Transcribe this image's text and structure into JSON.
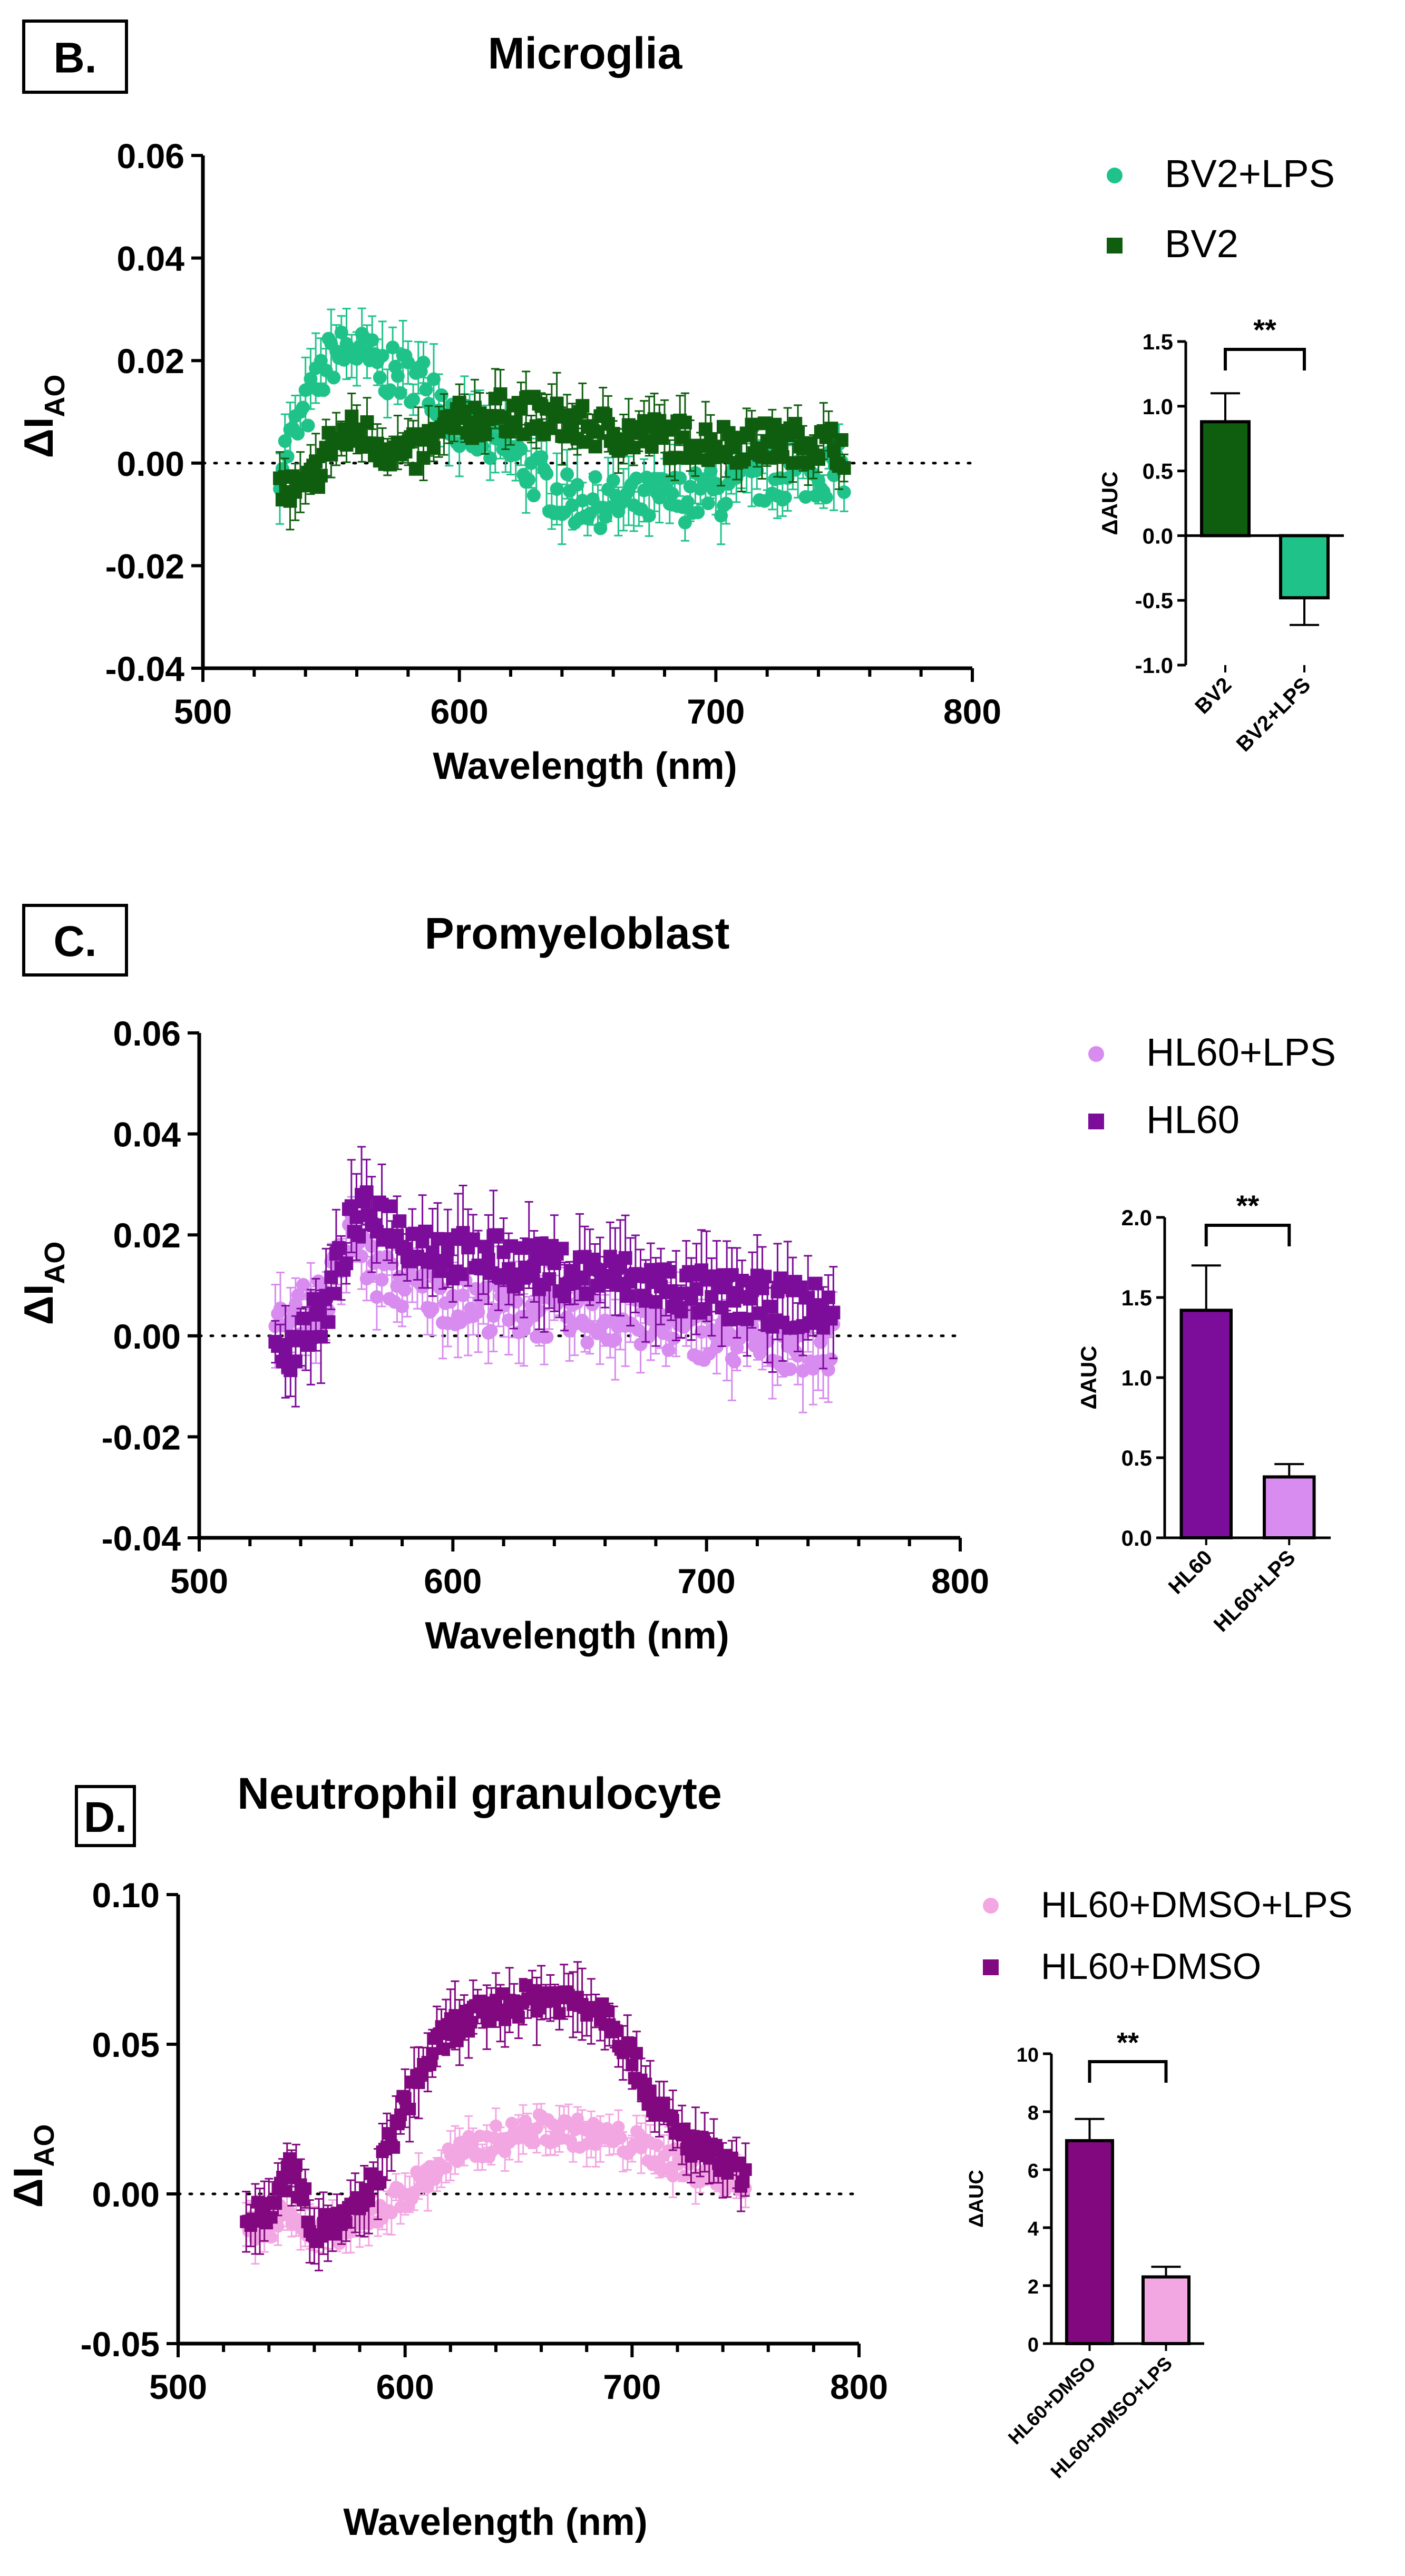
{
  "colors": {
    "bv2": "#0f5e0f",
    "bv2_lps": "#1fc38a",
    "hl60": "#7c0c9a",
    "hl60_lps": "#d88cef",
    "hl60_dmso": "#82087f",
    "hl60_dmso_lps": "#f3a7e2",
    "axis": "#000000"
  },
  "chart_data": [
    {
      "panel": "B.",
      "title": "Microglia",
      "type": "scatter",
      "xlabel": "Wavelength (nm)",
      "ylabel": {
        "delta": "Δ",
        "main": "I",
        "sub": "AO"
      },
      "xlim": [
        500,
        800
      ],
      "ylim": [
        -0.04,
        0.06
      ],
      "xticks": [
        500,
        600,
        700,
        800
      ],
      "xtick_labels": [
        "500",
        "600",
        "700",
        "800"
      ],
      "yticks": [
        -0.04,
        -0.02,
        0.0,
        0.02,
        0.04,
        0.06
      ],
      "ytick_labels": [
        "-0.04",
        "-0.02",
        "0.00",
        "0.02",
        "0.04",
        "0.06"
      ],
      "x_range": [
        530,
        750
      ],
      "series": [
        {
          "name": "BV2+LPS",
          "color": "bv2_lps",
          "marker": "circle",
          "curve": [
            [
              530,
              0.0
            ],
            [
              540,
              0.01
            ],
            [
              550,
              0.021
            ],
            [
              560,
              0.022
            ],
            [
              570,
              0.018
            ],
            [
              580,
              0.017
            ],
            [
              590,
              0.015
            ],
            [
              600,
              0.007
            ],
            [
              620,
              0.002
            ],
            [
              640,
              -0.007
            ],
            [
              660,
              -0.008
            ],
            [
              680,
              -0.007
            ],
            [
              700,
              -0.006
            ],
            [
              720,
              -0.003
            ],
            [
              740,
              -0.002
            ],
            [
              750,
              -0.001
            ]
          ],
          "err": 0.006,
          "noise": 0.005
        },
        {
          "name": "BV2",
          "color": "bv2",
          "marker": "square",
          "curve": [
            [
              530,
              -0.005
            ],
            [
              540,
              -0.006
            ],
            [
              550,
              0.004
            ],
            [
              560,
              0.006
            ],
            [
              580,
              0.001
            ],
            [
              600,
              0.008
            ],
            [
              620,
              0.01
            ],
            [
              640,
              0.008
            ],
            [
              660,
              0.006
            ],
            [
              680,
              0.005
            ],
            [
              700,
              0.004
            ],
            [
              720,
              0.004
            ],
            [
              740,
              0.004
            ],
            [
              750,
              0.003
            ]
          ],
          "err": 0.005,
          "noise": 0.004
        }
      ],
      "inset": {
        "type": "bar",
        "ylabel": "ΔAUC",
        "ylim": [
          -1.0,
          1.5
        ],
        "yticks": [
          -1.0,
          -0.5,
          0.0,
          0.5,
          1.0,
          1.5
        ],
        "ytick_labels": [
          "-1.0",
          "-0.5",
          "0.0",
          "0.5",
          "1.0",
          "1.5"
        ],
        "categories": [
          "BV2",
          "BV2+LPS"
        ],
        "values": [
          0.88,
          -0.48
        ],
        "errors": [
          0.22,
          0.21
        ],
        "colors": [
          "bv2",
          "bv2_lps"
        ],
        "significance": "**"
      }
    },
    {
      "panel": "C.",
      "title": "Promyeloblast",
      "type": "scatter",
      "xlabel": "Wavelength (nm)",
      "ylabel": {
        "delta": "Δ",
        "main": "I",
        "sub": "AO"
      },
      "xlim": [
        500,
        800
      ],
      "ylim": [
        -0.04,
        0.06
      ],
      "xticks": [
        500,
        600,
        700,
        800
      ],
      "xtick_labels": [
        "500",
        "600",
        "700",
        "800"
      ],
      "yticks": [
        -0.04,
        -0.02,
        0.0,
        0.02,
        0.04,
        0.06
      ],
      "ytick_labels": [
        "-0.04",
        "-0.02",
        "0.00",
        "0.02",
        "0.04",
        "0.06"
      ],
      "x_range": [
        530,
        750
      ],
      "series": [
        {
          "name": "HL60+LPS",
          "color": "hl60_lps",
          "marker": "circle",
          "curve": [
            [
              530,
              0.0
            ],
            [
              540,
              0.005
            ],
            [
              550,
              0.008
            ],
            [
              560,
              0.02
            ],
            [
              570,
              0.012
            ],
            [
              580,
              0.01
            ],
            [
              600,
              0.007
            ],
            [
              620,
              0.005
            ],
            [
              640,
              0.004
            ],
            [
              660,
              0.003
            ],
            [
              680,
              0.002
            ],
            [
              700,
              0.0
            ],
            [
              720,
              -0.002
            ],
            [
              740,
              -0.002
            ],
            [
              750,
              -0.002
            ]
          ],
          "err": 0.007,
          "noise": 0.005
        },
        {
          "name": "HL60",
          "color": "hl60",
          "marker": "square",
          "curve": [
            [
              530,
              -0.005
            ],
            [
              540,
              0.0
            ],
            [
              550,
              0.005
            ],
            [
              560,
              0.022
            ],
            [
              570,
              0.025
            ],
            [
              580,
              0.02
            ],
            [
              600,
              0.016
            ],
            [
              620,
              0.015
            ],
            [
              640,
              0.013
            ],
            [
              660,
              0.012
            ],
            [
              680,
              0.01
            ],
            [
              700,
              0.008
            ],
            [
              720,
              0.007
            ],
            [
              740,
              0.006
            ],
            [
              750,
              0.005
            ]
          ],
          "err": 0.008,
          "noise": 0.005
        }
      ],
      "inset": {
        "type": "bar",
        "ylabel": "ΔAUC",
        "ylim": [
          0.0,
          2.0
        ],
        "yticks": [
          0.0,
          0.5,
          1.0,
          1.5,
          2.0
        ],
        "ytick_labels": [
          "0.0",
          "0.5",
          "1.0",
          "1.5",
          "2.0"
        ],
        "categories": [
          "HL60",
          "HL60+LPS"
        ],
        "values": [
          1.42,
          0.38
        ],
        "errors": [
          0.28,
          0.08
        ],
        "colors": [
          "hl60",
          "hl60_lps"
        ],
        "significance": "**"
      }
    },
    {
      "panel": "D.",
      "title": "Neutrophil granulocyte",
      "type": "scatter",
      "xlabel": "Wavelength (nm)",
      "ylabel": {
        "delta": "Δ",
        "main": "I",
        "sub": "AO"
      },
      "xlim": [
        500,
        800
      ],
      "ylim": [
        -0.05,
        0.1
      ],
      "xticks": [
        500,
        600,
        700,
        800
      ],
      "xtick_labels": [
        "500",
        "600",
        "700",
        "800"
      ],
      "yticks": [
        -0.05,
        0.0,
        0.05,
        0.1
      ],
      "ytick_labels": [
        "-0.05",
        "0.00",
        "0.05",
        "0.10"
      ],
      "x_range": [
        530,
        750
      ],
      "series": [
        {
          "name": "HL60+DMSO+LPS",
          "color": "hl60_dmso_lps",
          "marker": "circle",
          "curve": [
            [
              530,
              -0.012
            ],
            [
              540,
              -0.01
            ],
            [
              550,
              -0.005
            ],
            [
              560,
              -0.015
            ],
            [
              570,
              -0.012
            ],
            [
              580,
              -0.01
            ],
            [
              590,
              -0.005
            ],
            [
              600,
              0.0
            ],
            [
              620,
              0.012
            ],
            [
              640,
              0.018
            ],
            [
              660,
              0.022
            ],
            [
              680,
              0.02
            ],
            [
              700,
              0.017
            ],
            [
              720,
              0.01
            ],
            [
              740,
              0.006
            ],
            [
              750,
              0.005
            ]
          ],
          "err": 0.007,
          "noise": 0.005
        },
        {
          "name": "HL60+DMSO",
          "color": "hl60_dmso",
          "marker": "square",
          "curve": [
            [
              530,
              -0.01
            ],
            [
              540,
              -0.005
            ],
            [
              550,
              0.01
            ],
            [
              560,
              -0.012
            ],
            [
              570,
              -0.01
            ],
            [
              580,
              -0.005
            ],
            [
              590,
              0.01
            ],
            [
              600,
              0.03
            ],
            [
              610,
              0.045
            ],
            [
              620,
              0.055
            ],
            [
              640,
              0.062
            ],
            [
              660,
              0.066
            ],
            [
              680,
              0.064
            ],
            [
              690,
              0.06
            ],
            [
              700,
              0.045
            ],
            [
              710,
              0.03
            ],
            [
              720,
              0.02
            ],
            [
              730,
              0.015
            ],
            [
              740,
              0.01
            ],
            [
              750,
              0.005
            ]
          ],
          "err": 0.01,
          "noise": 0.005
        }
      ],
      "inset": {
        "type": "bar",
        "ylabel": "ΔAUC",
        "ylim": [
          0,
          10
        ],
        "yticks": [
          0,
          2,
          4,
          6,
          8,
          10
        ],
        "ytick_labels": [
          "0",
          "2",
          "4",
          "6",
          "8",
          "10"
        ],
        "categories": [
          "HL60+DMSO",
          "HL60+DMSO+LPS"
        ],
        "values": [
          7.0,
          2.3
        ],
        "errors": [
          0.75,
          0.35
        ],
        "colors": [
          "hl60_dmso",
          "hl60_dmso_lps"
        ],
        "significance": "**"
      }
    }
  ]
}
